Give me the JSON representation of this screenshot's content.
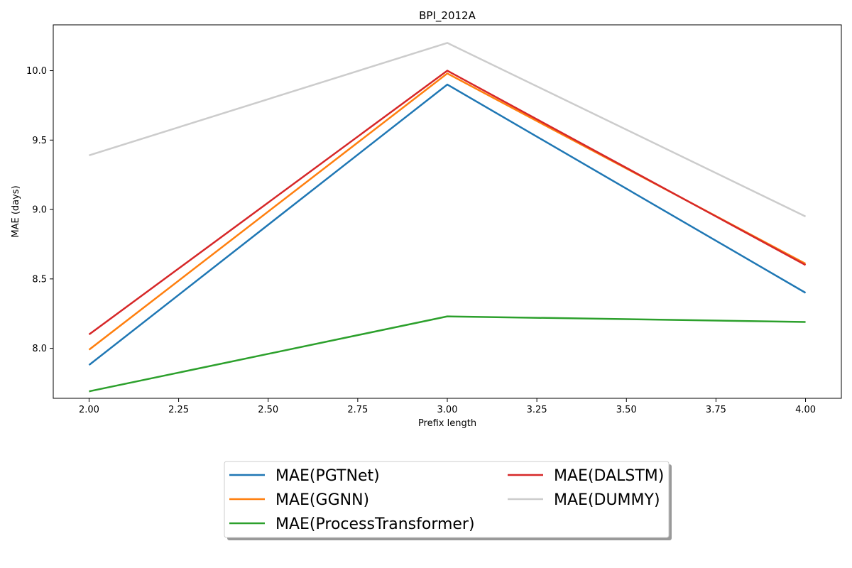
{
  "chart_data": {
    "type": "line",
    "title": "BPI_2012A",
    "xlabel": "Prefix length",
    "ylabel": "MAE (days)",
    "xlim": [
      1.9,
      4.1
    ],
    "ylim": [
      7.64,
      10.33
    ],
    "xticks": [
      2.0,
      2.25,
      2.5,
      2.75,
      3.0,
      3.25,
      3.5,
      3.75,
      4.0
    ],
    "xtick_labels": [
      "2.00",
      "2.25",
      "2.50",
      "2.75",
      "3.00",
      "3.25",
      "3.50",
      "3.75",
      "4.00"
    ],
    "yticks": [
      8.0,
      8.5,
      9.0,
      9.5,
      10.0
    ],
    "ytick_labels": [
      "8.0",
      "8.5",
      "9.0",
      "9.5",
      "10.0"
    ],
    "grid": false,
    "legend_position": "below-center",
    "x": [
      2,
      3,
      4
    ],
    "series": [
      {
        "name": "MAE(PGTNet)",
        "values": [
          7.88,
          9.9,
          8.4
        ],
        "color": "#1f77b4"
      },
      {
        "name": "MAE(GGNN)",
        "values": [
          7.99,
          9.98,
          8.61
        ],
        "color": "#ff7f0e"
      },
      {
        "name": "MAE(ProcessTransformer)",
        "values": [
          7.69,
          8.23,
          8.19
        ],
        "color": "#2ca02c"
      },
      {
        "name": "MAE(DALSTM)",
        "values": [
          8.1,
          10.0,
          8.6
        ],
        "color": "#d62728"
      },
      {
        "name": "MAE(DUMMY)",
        "values": [
          9.39,
          10.2,
          8.95
        ],
        "color": "#cccccc"
      }
    ]
  }
}
